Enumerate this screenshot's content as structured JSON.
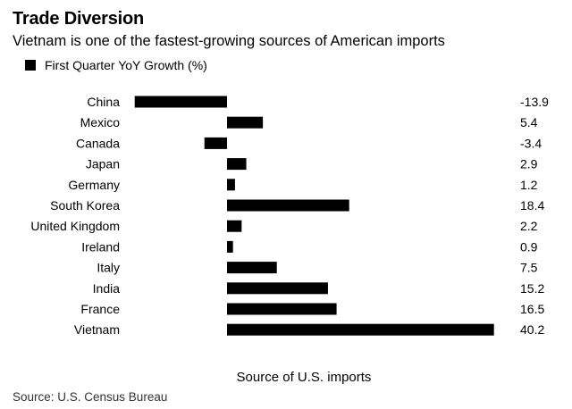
{
  "header": {
    "title": "Trade Diversion",
    "subtitle": "Vietnam is one of the fastest-growing sources of American imports"
  },
  "footer": {
    "source": "Source: U.S. Census Bureau"
  },
  "colors": {
    "bar": "#000000",
    "text": "#000000"
  },
  "chart_data": {
    "type": "bar",
    "orientation": "horizontal",
    "title": "Trade Diversion",
    "subtitle": "Vietnam is one of the fastest-growing sources of American imports",
    "xlabel": "Source of U.S. imports",
    "ylabel": "",
    "legend": [
      "First Quarter YoY Growth (%)"
    ],
    "legend_position": "top-left",
    "grid": false,
    "xlim": [
      -15,
      41
    ],
    "categories": [
      "China",
      "Mexico",
      "Canada",
      "Japan",
      "Germany",
      "South Korea",
      "United Kingdom",
      "Ireland",
      "Italy",
      "India",
      "France",
      "Vietnam"
    ],
    "values": [
      -13.9,
      5.4,
      -3.4,
      2.9,
      1.2,
      18.4,
      2.2,
      0.9,
      7.5,
      15.2,
      16.5,
      40.2
    ],
    "value_labels": [
      "-13.9",
      "5.4",
      "-3.4",
      "2.9",
      "1.2",
      "18.4",
      "2.2",
      "0.9",
      "7.5",
      "15.2",
      "16.5",
      "40.2"
    ]
  }
}
